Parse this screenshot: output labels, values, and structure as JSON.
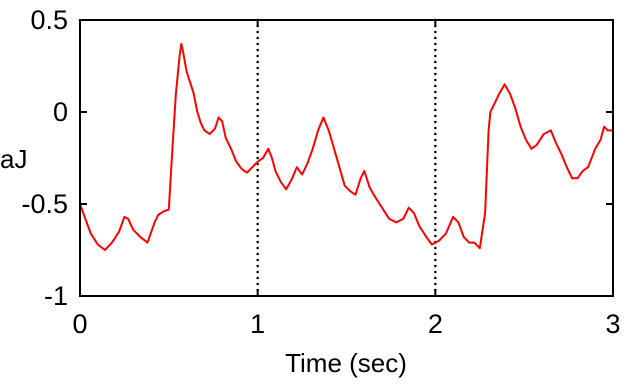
{
  "chart_data": {
    "type": "line",
    "title": "",
    "xlabel": "Time (sec)",
    "ylabel": "aJ",
    "xlim": [
      0,
      3
    ],
    "ylim": [
      -1,
      0.5
    ],
    "xticks": [
      0,
      1,
      2,
      3
    ],
    "yticks": [
      0.5,
      0,
      -0.5,
      -1
    ],
    "xtick_labels": [
      "0",
      "1",
      "2",
      "3"
    ],
    "ytick_labels": [
      "0.5",
      "0",
      "-0.5",
      "-1"
    ],
    "grid": "dotted vertical lines at x = 1 and x = 2",
    "legend": "none",
    "series": [
      {
        "color": "#ff0000",
        "x": [
          0.0,
          0.03,
          0.06,
          0.1,
          0.14,
          0.18,
          0.22,
          0.25,
          0.27,
          0.3,
          0.34,
          0.38,
          0.42,
          0.44,
          0.47,
          0.5,
          0.52,
          0.54,
          0.56,
          0.57,
          0.58,
          0.6,
          0.62,
          0.64,
          0.66,
          0.68,
          0.7,
          0.73,
          0.76,
          0.78,
          0.8,
          0.82,
          0.85,
          0.88,
          0.91,
          0.94,
          0.97,
          1.0,
          1.03,
          1.06,
          1.08,
          1.1,
          1.13,
          1.16,
          1.19,
          1.22,
          1.25,
          1.28,
          1.31,
          1.34,
          1.37,
          1.4,
          1.43,
          1.46,
          1.49,
          1.52,
          1.55,
          1.58,
          1.6,
          1.63,
          1.66,
          1.7,
          1.74,
          1.78,
          1.82,
          1.85,
          1.88,
          1.91,
          1.95,
          1.98,
          2.02,
          2.06,
          2.1,
          2.13,
          2.16,
          2.19,
          2.22,
          2.25,
          2.28,
          2.3,
          2.31,
          2.33,
          2.36,
          2.39,
          2.42,
          2.45,
          2.48,
          2.51,
          2.54,
          2.57,
          2.61,
          2.65,
          2.68,
          2.71,
          2.74,
          2.77,
          2.8,
          2.83,
          2.86,
          2.9,
          2.93,
          2.95,
          2.97,
          3.0
        ],
        "y": [
          -0.5,
          -0.58,
          -0.66,
          -0.72,
          -0.75,
          -0.71,
          -0.65,
          -0.57,
          -0.58,
          -0.64,
          -0.68,
          -0.71,
          -0.6,
          -0.56,
          -0.54,
          -0.53,
          -0.2,
          0.1,
          0.3,
          0.37,
          0.33,
          0.22,
          0.16,
          0.1,
          0.0,
          -0.06,
          -0.1,
          -0.12,
          -0.09,
          -0.03,
          -0.05,
          -0.14,
          -0.2,
          -0.27,
          -0.31,
          -0.33,
          -0.3,
          -0.27,
          -0.25,
          -0.2,
          -0.25,
          -0.32,
          -0.38,
          -0.42,
          -0.37,
          -0.3,
          -0.34,
          -0.28,
          -0.2,
          -0.1,
          -0.03,
          -0.1,
          -0.2,
          -0.3,
          -0.4,
          -0.43,
          -0.45,
          -0.36,
          -0.32,
          -0.41,
          -0.46,
          -0.52,
          -0.58,
          -0.6,
          -0.58,
          -0.52,
          -0.55,
          -0.62,
          -0.68,
          -0.72,
          -0.7,
          -0.66,
          -0.57,
          -0.6,
          -0.68,
          -0.71,
          -0.71,
          -0.74,
          -0.55,
          -0.1,
          0.0,
          0.04,
          0.1,
          0.15,
          0.1,
          0.02,
          -0.08,
          -0.15,
          -0.2,
          -0.18,
          -0.12,
          -0.1,
          -0.17,
          -0.23,
          -0.3,
          -0.36,
          -0.36,
          -0.32,
          -0.3,
          -0.2,
          -0.15,
          -0.08,
          -0.1,
          -0.1
        ]
      }
    ]
  }
}
